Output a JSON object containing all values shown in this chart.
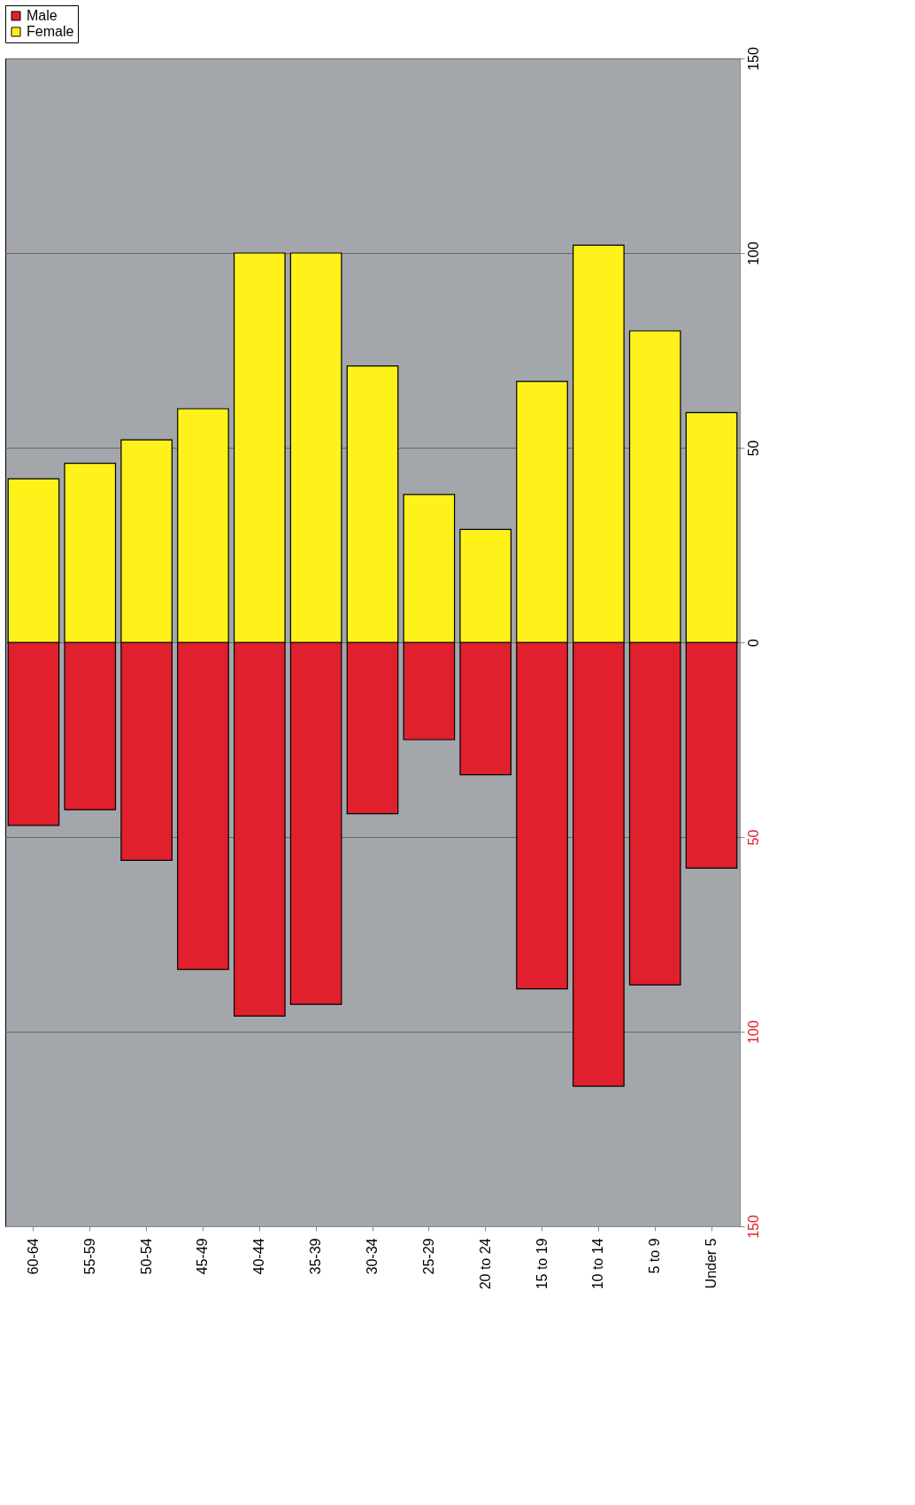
{
  "chart_data": {
    "type": "bar",
    "stacked": true,
    "categories": [
      "60-64",
      "55-59",
      "50-54",
      "45-49",
      "40-44",
      "35-39",
      "30-34",
      "25-29",
      "20 to 24",
      "15 to 19",
      "10 to 14",
      "5 to 9",
      "Under 5"
    ],
    "series": [
      {
        "name": "Male",
        "color": "#e0202c",
        "values": [
          -47,
          -43,
          -56,
          -84,
          -96,
          -93,
          -44,
          -25,
          -34,
          -89,
          -114,
          -88,
          -58
        ]
      },
      {
        "name": "Female",
        "color": "#fff21a",
        "values": [
          42,
          46,
          52,
          60,
          100,
          100,
          71,
          38,
          29,
          67,
          102,
          80,
          59
        ]
      }
    ],
    "ylim": [
      -150,
      150
    ],
    "yticks": [
      {
        "value": -150,
        "label": "150"
      },
      {
        "value": -100,
        "label": "100"
      },
      {
        "value": -50,
        "label": "50"
      },
      0,
      50,
      100,
      150
    ],
    "grid": "y",
    "legend": "top"
  }
}
